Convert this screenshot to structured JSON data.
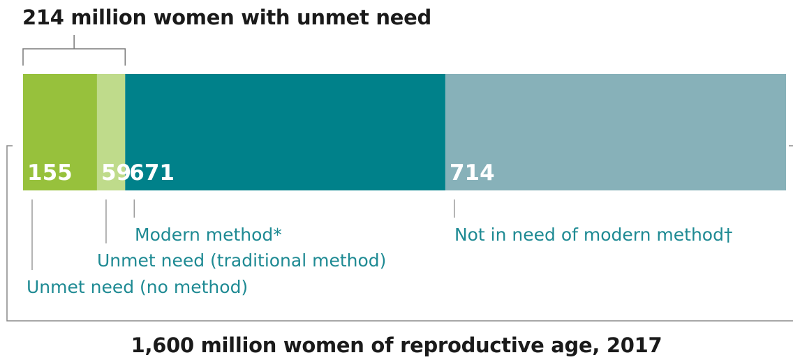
{
  "chart_data": {
    "type": "bar",
    "orientation": "horizontal-stacked",
    "title": "214 million women with unmet need",
    "footer": "1,600 million women of reproductive age, 2017",
    "segments": [
      {
        "label": "Unmet need (no method)",
        "value": 155,
        "value_label": "155",
        "color": "#97c13c"
      },
      {
        "label": "Unmet need (traditional method)",
        "value": 59,
        "value_label": "59",
        "color": "#bfdb8b"
      },
      {
        "label": "Modern method*",
        "value": 671,
        "value_label": "671",
        "color": "#00818a"
      },
      {
        "label": "Not in need of modern method†",
        "value": 714,
        "value_label": "714",
        "color": "#87b1b9"
      }
    ],
    "total": 1599,
    "bracket_over_first_segments": 2,
    "label_color": "#1e8a93"
  }
}
